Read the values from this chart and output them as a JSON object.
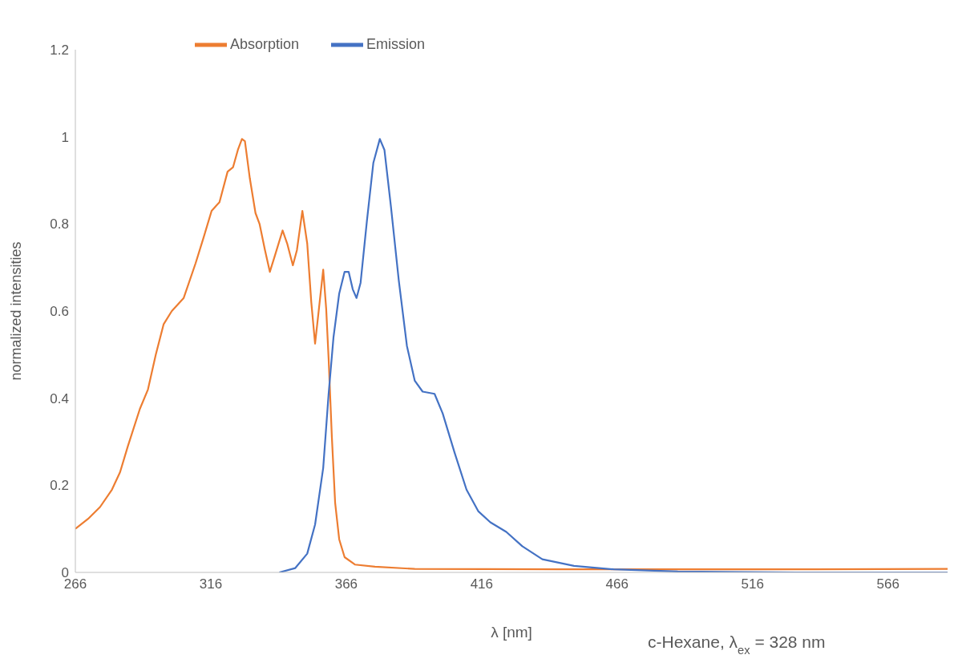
{
  "chart_data": {
    "type": "line",
    "xlabel": "λ [nm]",
    "ylabel": "normalized intensities",
    "annotations": [
      "c-Hexane, λ$_{ex}$ = 328 nm"
    ],
    "xlim": [
      266,
      588
    ],
    "xticks": [
      266,
      316,
      366,
      416,
      466,
      516,
      566
    ],
    "ylim": [
      0,
      1.2
    ],
    "yticks": [
      0,
      0.2,
      0.4,
      0.6,
      0.8,
      1,
      1.2
    ],
    "grid": false,
    "legend": "top",
    "series": [
      {
        "name": "Absorption",
        "color": "#ed7d31",
        "x": [
          266,
          270.7,
          275.1,
          279.5,
          282.5,
          285.4,
          289.8,
          292.8,
          295.7,
          298.6,
          301.6,
          306,
          310.4,
          313.4,
          316.3,
          319.2,
          322.2,
          324.2,
          326,
          327.5,
          328.6,
          330.4,
          332.5,
          334,
          336,
          337.8,
          339.8,
          342.5,
          344.2,
          346.3,
          347.8,
          349.8,
          351.6,
          353.1,
          354.5,
          356,
          357.5,
          358.6,
          359.5,
          360.7,
          361.9,
          363.4,
          365.4,
          369.2,
          376.6,
          391.3,
          444,
          532,
          588
        ],
        "values": [
          0.1,
          0.123,
          0.15,
          0.19,
          0.23,
          0.29,
          0.375,
          0.42,
          0.5,
          0.57,
          0.6,
          0.63,
          0.71,
          0.77,
          0.83,
          0.85,
          0.92,
          0.93,
          0.97,
          0.995,
          0.99,
          0.905,
          0.825,
          0.8,
          0.74,
          0.69,
          0.73,
          0.785,
          0.755,
          0.705,
          0.74,
          0.83,
          0.755,
          0.62,
          0.525,
          0.61,
          0.695,
          0.605,
          0.49,
          0.31,
          0.16,
          0.076,
          0.035,
          0.018,
          0.013,
          0.008,
          0.007,
          0.007,
          0.008
        ]
      },
      {
        "name": "Emission",
        "color": "#4472c4",
        "x": [
          341.3,
          347.2,
          351.6,
          354.5,
          357.5,
          359.5,
          361.3,
          363.4,
          365.4,
          366.9,
          368.4,
          369.8,
          371.3,
          373.6,
          376,
          378.4,
          380.1,
          382.5,
          385.4,
          388.4,
          391.3,
          394.2,
          398.6,
          401.6,
          406,
          410.4,
          414.8,
          419.2,
          425.1,
          431,
          438.4,
          450.1,
          464.8,
          488.4,
          532,
          588
        ],
        "values": [
          0,
          0.01,
          0.043,
          0.11,
          0.24,
          0.41,
          0.54,
          0.64,
          0.69,
          0.69,
          0.65,
          0.63,
          0.665,
          0.805,
          0.94,
          0.995,
          0.97,
          0.84,
          0.67,
          0.52,
          0.44,
          0.415,
          0.41,
          0.365,
          0.275,
          0.19,
          0.14,
          0.115,
          0.093,
          0.06,
          0.03,
          0.015,
          0.007,
          0.002,
          0,
          0
        ]
      }
    ]
  }
}
